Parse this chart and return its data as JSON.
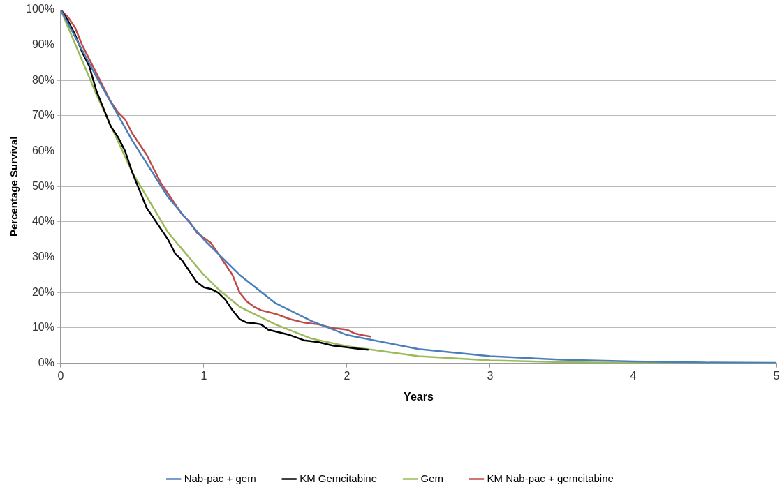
{
  "chart_data": {
    "type": "line",
    "xlabel": "Years",
    "ylabel": "Percentage Survival",
    "xlim": [
      0,
      5
    ],
    "xticks": [
      0,
      1,
      2,
      3,
      4,
      5
    ],
    "ylim": [
      0,
      100
    ],
    "yticks": [
      {
        "value": 0,
        "label": "0%"
      },
      {
        "value": 10,
        "label": "10%"
      },
      {
        "value": 20,
        "label": "20%"
      },
      {
        "value": 30,
        "label": "30%"
      },
      {
        "value": 40,
        "label": "40%"
      },
      {
        "value": 50,
        "label": "50%"
      },
      {
        "value": 60,
        "label": "60%"
      },
      {
        "value": 70,
        "label": "70%"
      },
      {
        "value": 80,
        "label": "80%"
      },
      {
        "value": 90,
        "label": "90%"
      },
      {
        "value": 100,
        "label": "100%"
      }
    ],
    "grid": "y",
    "legend": "bottom",
    "marker": "none",
    "line_style": "solid",
    "series": [
      {
        "name": "Nab-pac + gem",
        "color": "#4a7ebb",
        "x": [
          0,
          0.25,
          0.5,
          0.75,
          1,
          1.25,
          1.5,
          1.75,
          2,
          2.5,
          3,
          3.5,
          4,
          4.5,
          5
        ],
        "values": [
          100,
          81,
          63,
          47,
          35,
          25,
          17,
          12,
          8,
          4,
          2,
          1,
          0.5,
          0.2,
          0.1
        ]
      },
      {
        "name": "KM Gemcitabine",
        "color": "#000000",
        "x": [
          0,
          0.05,
          0.1,
          0.15,
          0.2,
          0.25,
          0.3,
          0.35,
          0.4,
          0.45,
          0.5,
          0.55,
          0.6,
          0.65,
          0.7,
          0.75,
          0.8,
          0.85,
          0.9,
          0.95,
          1,
          1.05,
          1.1,
          1.15,
          1.2,
          1.25,
          1.3,
          1.35,
          1.4,
          1.45,
          1.5,
          1.6,
          1.7,
          1.8,
          1.9,
          2,
          2.1,
          2.15
        ],
        "values": [
          100,
          97,
          93,
          88,
          84,
          77,
          72,
          67,
          64,
          60,
          54,
          49,
          44,
          41,
          38,
          35,
          31,
          29,
          26,
          23,
          21.5,
          21,
          20,
          18,
          15,
          12.5,
          11.5,
          11.3,
          11,
          9.5,
          9,
          8,
          6.5,
          6,
          5,
          4.5,
          4,
          3.8
        ]
      },
      {
        "name": "Gem",
        "color": "#9bbb59",
        "x": [
          0,
          0.25,
          0.5,
          0.75,
          1,
          1.1,
          1.25,
          1.5,
          1.75,
          2,
          2.5,
          3,
          3.5,
          4,
          5
        ],
        "values": [
          100,
          76,
          54,
          37,
          25,
          21,
          16,
          11,
          7,
          4.8,
          2,
          0.8,
          0.3,
          0.1,
          0
        ]
      },
      {
        "name": "KM Nab-pac + gemcitabine",
        "color": "#be4b48",
        "x": [
          0,
          0.05,
          0.1,
          0.15,
          0.2,
          0.25,
          0.3,
          0.35,
          0.4,
          0.45,
          0.5,
          0.55,
          0.6,
          0.65,
          0.7,
          0.75,
          0.8,
          0.85,
          0.9,
          0.95,
          1,
          1.05,
          1.1,
          1.15,
          1.2,
          1.25,
          1.3,
          1.35,
          1.4,
          1.5,
          1.6,
          1.7,
          1.8,
          1.9,
          2,
          2.05,
          2.1,
          2.17
        ],
        "values": [
          100,
          98,
          95,
          90,
          86,
          82,
          78,
          74,
          71,
          69,
          65,
          62,
          59,
          55,
          51,
          48,
          45,
          42,
          40,
          37,
          35.5,
          34,
          31,
          28,
          25,
          20,
          17.5,
          16,
          15,
          14,
          12.5,
          11.5,
          11,
          10,
          9.5,
          8.5,
          8,
          7.5
        ]
      }
    ]
  }
}
